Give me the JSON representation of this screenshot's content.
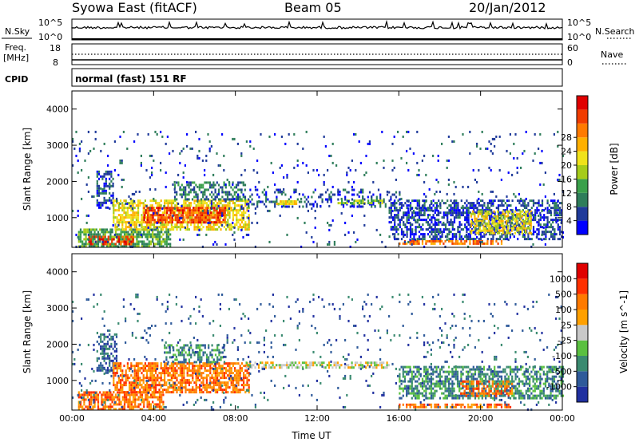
{
  "header": {
    "title": "Syowa East (fitACF)",
    "beam": "Beam 05",
    "date": "20/Jan/2012"
  },
  "status_panels": {
    "nsky_label": "N.Sky",
    "nsearch_label": "N.Search",
    "noise_ticks": [
      "10^5",
      "10^0"
    ],
    "freq_label_line1": "Freq.",
    "freq_label_line2": "[MHz]",
    "freq_ticks": [
      "18",
      "8"
    ],
    "nave_label": "Nave",
    "nave_ticks": [
      "60",
      "0"
    ],
    "cpid_label": "CPID",
    "cpid_text": "normal (fast) 151 RF"
  },
  "chart_data": [
    {
      "type": "heatmap",
      "name": "power",
      "xlabel": "Time UT",
      "ylabel": "Slant Range [km]",
      "xlim_hours": [
        0,
        24
      ],
      "ylim_km": [
        180,
        4500
      ],
      "y_ticks": [
        1000,
        2000,
        3000,
        4000
      ],
      "colorbar": {
        "label": "Power [dB]",
        "ticks": [
          "4",
          "8",
          "12",
          "16",
          "20",
          "24",
          "28"
        ],
        "colors": [
          "#0000ff",
          "#1f3a9a",
          "#2e7d5a",
          "#3aa04a",
          "#a6cc1a",
          "#f0e21a",
          "#ffb000",
          "#ff7a00",
          "#f03c00",
          "#e00000"
        ]
      },
      "regions": [
        {
          "t": [
            0.3,
            4.8
          ],
          "r": [
            180,
            700
          ],
          "level": 3,
          "density": 0.75
        },
        {
          "t": [
            0.8,
            3.0
          ],
          "r": [
            250,
            500
          ],
          "level": 8,
          "density": 0.6
        },
        {
          "t": [
            1.2,
            2.0
          ],
          "r": [
            1300,
            2300
          ],
          "level": 1,
          "density": 0.5
        },
        {
          "t": [
            2.0,
            8.7
          ],
          "r": [
            700,
            1500
          ],
          "level": 5,
          "density": 0.65
        },
        {
          "t": [
            3.5,
            7.5
          ],
          "r": [
            900,
            1300
          ],
          "level": 8,
          "density": 0.75
        },
        {
          "t": [
            5.0,
            8.5
          ],
          "r": [
            1500,
            2000
          ],
          "level": 2,
          "density": 0.45
        },
        {
          "t": [
            8.0,
            16.0
          ],
          "r": [
            1300,
            1800
          ],
          "level": 1,
          "density": 0.25
        },
        {
          "t": [
            10.0,
            11.0
          ],
          "r": [
            1350,
            1480
          ],
          "level": 5,
          "density": 0.7
        },
        {
          "t": [
            13.0,
            15.2
          ],
          "r": [
            1400,
            1500
          ],
          "level": 4,
          "density": 0.6
        },
        {
          "t": [
            15.5,
            24.0
          ],
          "r": [
            400,
            1500
          ],
          "level": 1,
          "density": 0.55
        },
        {
          "t": [
            19.5,
            22.5
          ],
          "r": [
            600,
            1200
          ],
          "level": 5,
          "density": 0.6
        },
        {
          "t": [
            16.0,
            21.0
          ],
          "r": [
            250,
            380
          ],
          "level": 7,
          "density": 0.65
        },
        {
          "t": [
            0.0,
            24.0
          ],
          "r": [
            180,
            3400
          ],
          "level": 1,
          "density": 0.04
        }
      ]
    },
    {
      "type": "heatmap",
      "name": "velocity",
      "xlabel": "Time UT",
      "ylabel": "Slant Range [km]",
      "xlim_hours": [
        0,
        24
      ],
      "ylim_km": [
        180,
        4500
      ],
      "x_ticks": [
        "00:00",
        "04:00",
        "08:00",
        "12:00",
        "16:00",
        "20:00",
        "00:00"
      ],
      "y_ticks": [
        1000,
        2000,
        3000,
        4000
      ],
      "colorbar": {
        "label": "Velocity [m s^-1]",
        "ticks": [
          "1000",
          "500",
          "100",
          "25",
          "-25",
          "-100",
          "-500",
          "-1000"
        ],
        "colors": [
          "#2030a0",
          "#2e5a9a",
          "#3a8a70",
          "#5ac040",
          "#c8c8c8",
          "#ffa000",
          "#ff7a00",
          "#ff3000",
          "#e00000"
        ]
      },
      "regions": [
        {
          "t": [
            0.3,
            4.5
          ],
          "r": [
            180,
            700
          ],
          "level": 6,
          "density": 0.7
        },
        {
          "t": [
            1.2,
            2.2
          ],
          "r": [
            1200,
            2300
          ],
          "level": 1,
          "density": 0.5
        },
        {
          "t": [
            2.0,
            8.7
          ],
          "r": [
            700,
            1500
          ],
          "level": 6,
          "density": 0.7
        },
        {
          "t": [
            4.5,
            7.5
          ],
          "r": [
            1500,
            2000
          ],
          "level": 2,
          "density": 0.45
        },
        {
          "t": [
            8.5,
            15.5
          ],
          "r": [
            1380,
            1520
          ],
          "level": 4,
          "density": 0.55
        },
        {
          "t": [
            16.0,
            24.0
          ],
          "r": [
            500,
            1400
          ],
          "level": 2,
          "density": 0.6
        },
        {
          "t": [
            19.0,
            21.5
          ],
          "r": [
            600,
            1000
          ],
          "level": 6,
          "density": 0.5
        },
        {
          "t": [
            16.0,
            21.5
          ],
          "r": [
            250,
            360
          ],
          "level": 6,
          "density": 0.6
        },
        {
          "t": [
            0.0,
            24.0
          ],
          "r": [
            180,
            3400
          ],
          "level": 1,
          "density": 0.04
        }
      ]
    }
  ]
}
